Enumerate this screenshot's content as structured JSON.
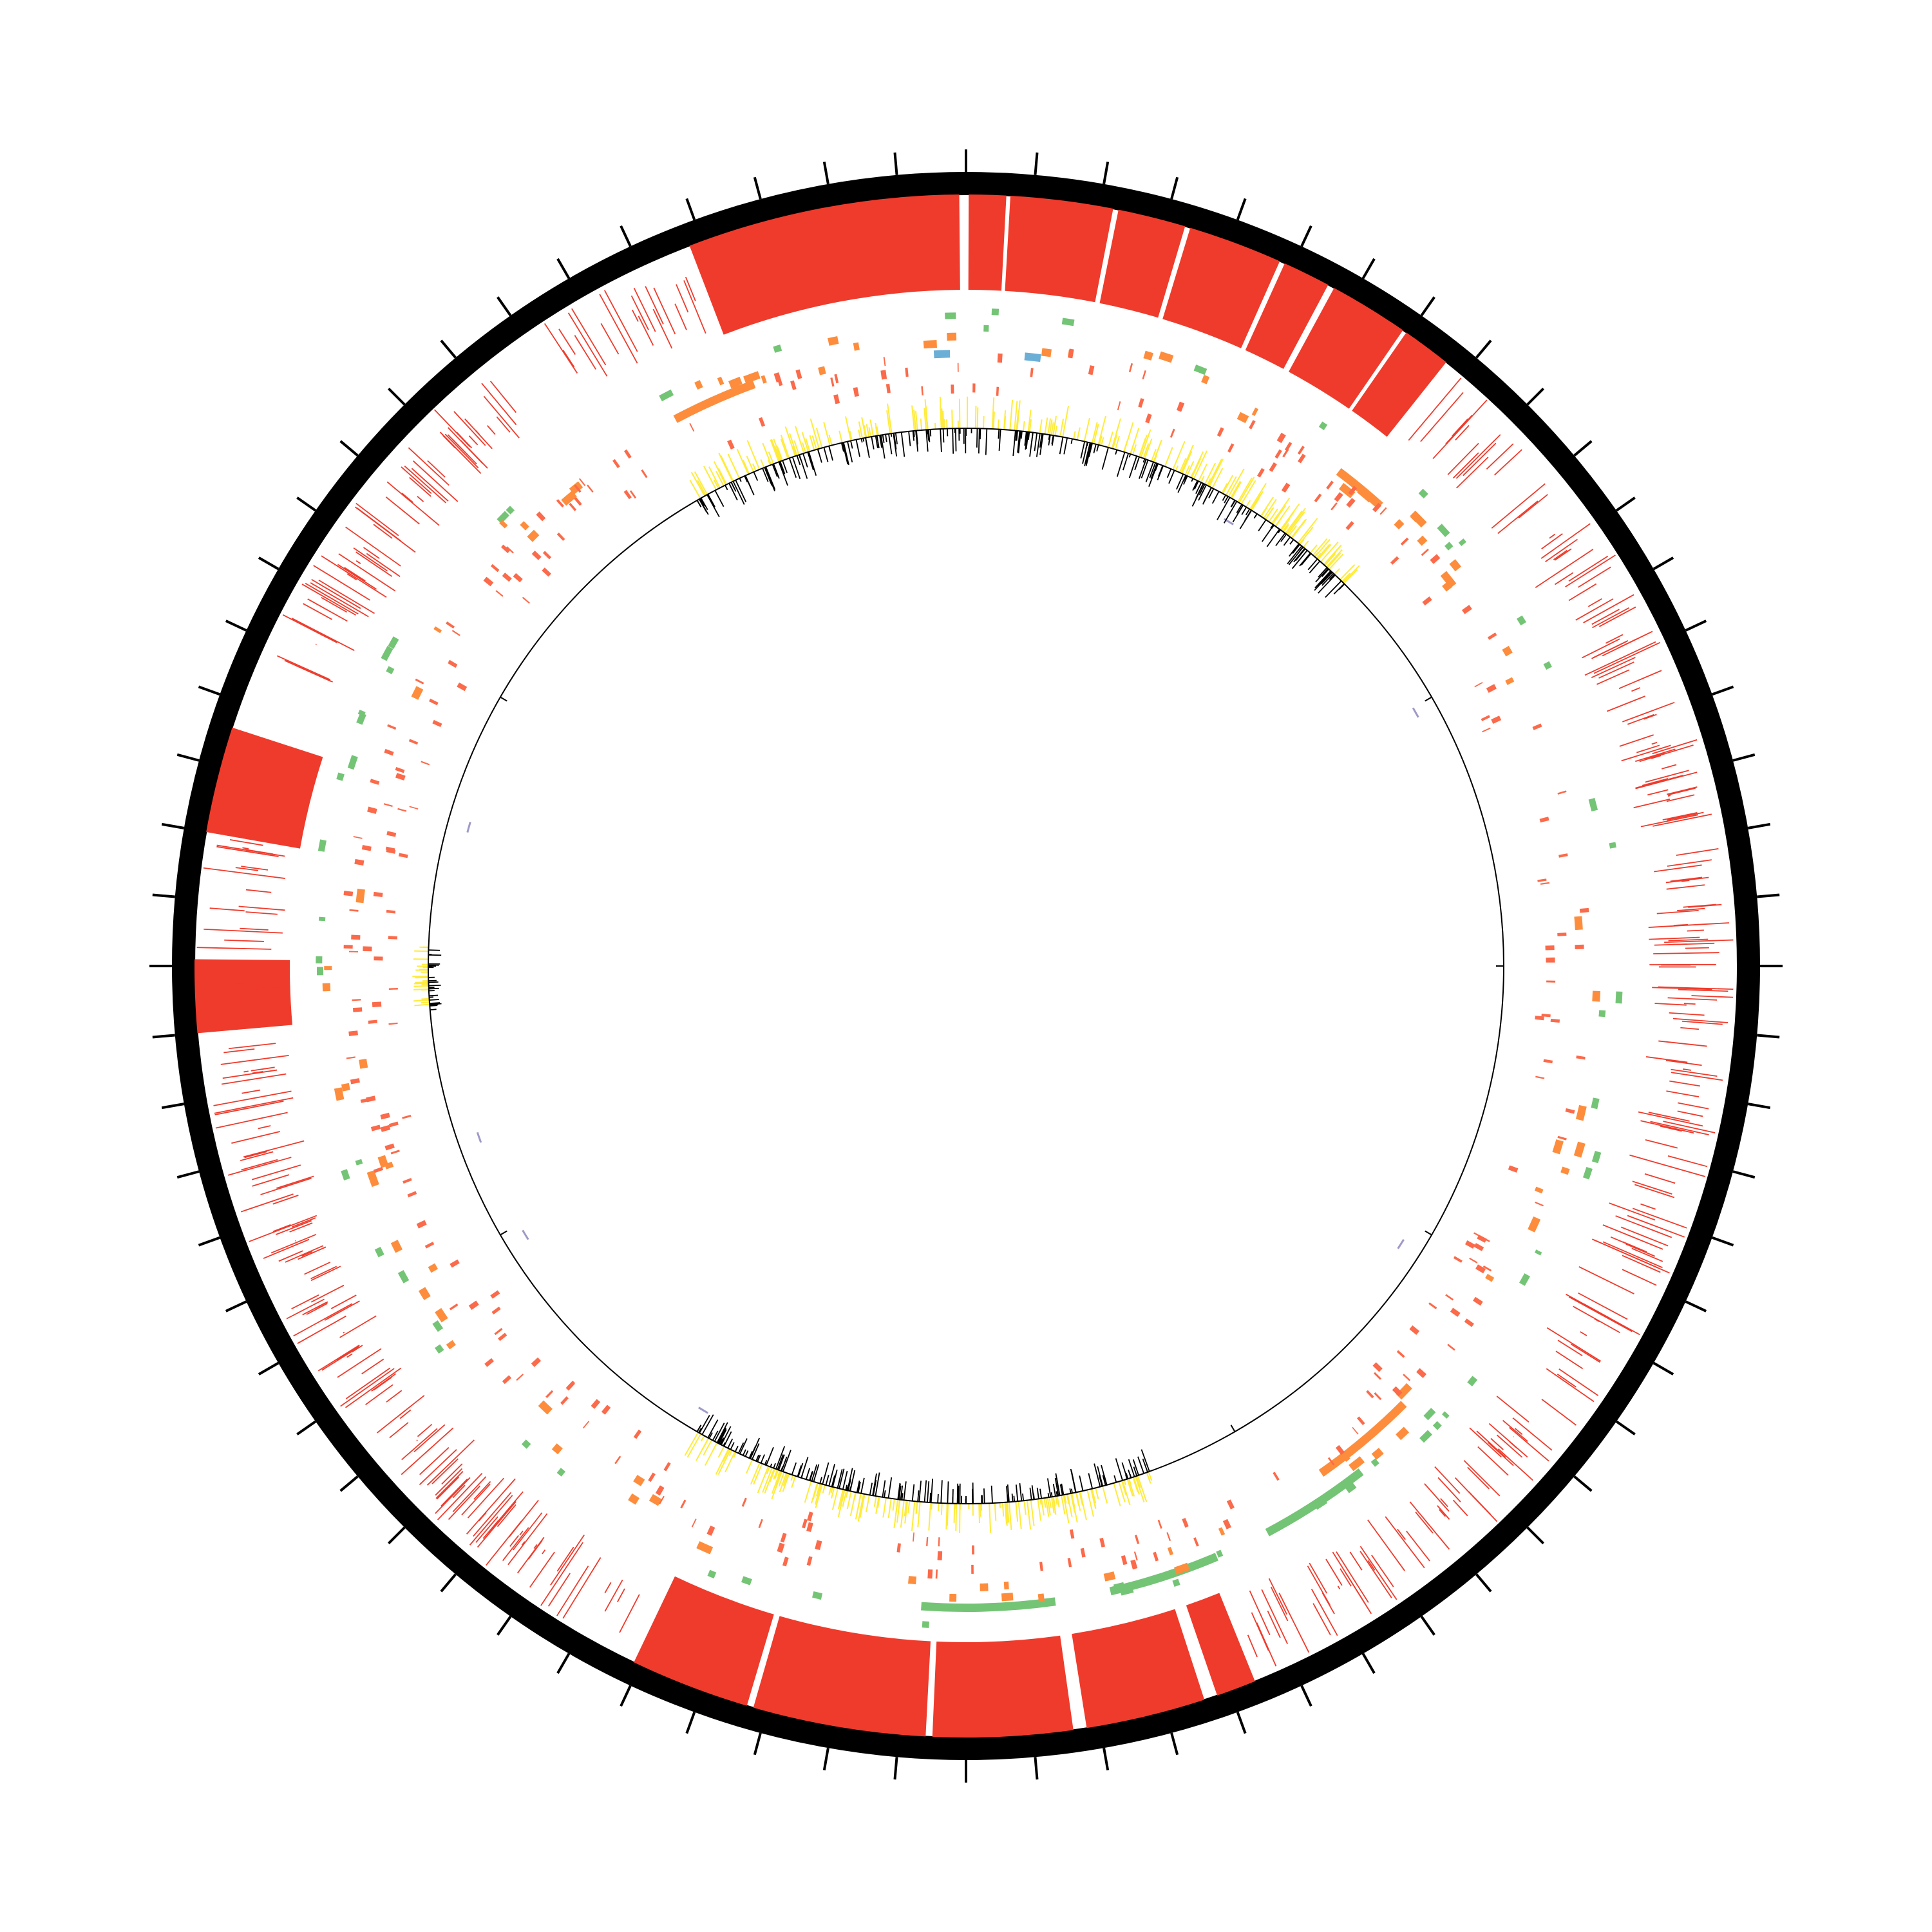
{
  "diagram": {
    "type": "circular-genome-map",
    "tracks": [
      {
        "name": "ideogram",
        "color": "#000000"
      },
      {
        "name": "major-alignment-blocks",
        "color": "#ef3b2c"
      },
      {
        "name": "green-features",
        "color": "#74c476"
      },
      {
        "name": "orange-features",
        "color": "#fd8d3c"
      },
      {
        "name": "salmon-features",
        "color": "#fb6a4a"
      },
      {
        "name": "blue-features",
        "color": "#6baed6"
      },
      {
        "name": "purple-features",
        "color": "#9e9ac8"
      },
      {
        "name": "yellow-histogram",
        "color": "#ffeb3b"
      },
      {
        "name": "black-histogram",
        "color": "#000000"
      },
      {
        "name": "inner-axis",
        "color": "#000000"
      }
    ],
    "ticks": {
      "major_count": 72
    }
  }
}
